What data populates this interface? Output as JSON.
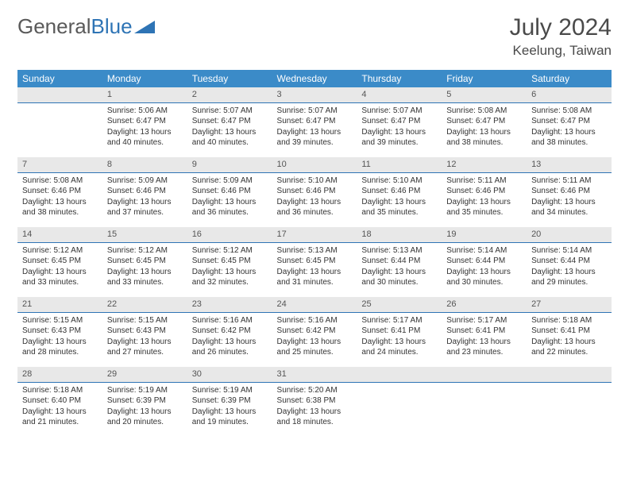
{
  "logo": {
    "text_gray": "General",
    "text_blue": "Blue"
  },
  "header": {
    "title": "July 2024",
    "location": "Keelung, Taiwan"
  },
  "colors": {
    "header_bg": "#3b8bc8",
    "header_text": "#ffffff",
    "daynum_bg": "#e8e8e8",
    "daynum_border": "#2e74b5",
    "body_text": "#333333"
  },
  "weekdays": [
    "Sunday",
    "Monday",
    "Tuesday",
    "Wednesday",
    "Thursday",
    "Friday",
    "Saturday"
  ],
  "weeks": [
    [
      {
        "n": "",
        "sr": "",
        "ss": "",
        "dl": ""
      },
      {
        "n": "1",
        "sr": "Sunrise: 5:06 AM",
        "ss": "Sunset: 6:47 PM",
        "dl": "Daylight: 13 hours and 40 minutes."
      },
      {
        "n": "2",
        "sr": "Sunrise: 5:07 AM",
        "ss": "Sunset: 6:47 PM",
        "dl": "Daylight: 13 hours and 40 minutes."
      },
      {
        "n": "3",
        "sr": "Sunrise: 5:07 AM",
        "ss": "Sunset: 6:47 PM",
        "dl": "Daylight: 13 hours and 39 minutes."
      },
      {
        "n": "4",
        "sr": "Sunrise: 5:07 AM",
        "ss": "Sunset: 6:47 PM",
        "dl": "Daylight: 13 hours and 39 minutes."
      },
      {
        "n": "5",
        "sr": "Sunrise: 5:08 AM",
        "ss": "Sunset: 6:47 PM",
        "dl": "Daylight: 13 hours and 38 minutes."
      },
      {
        "n": "6",
        "sr": "Sunrise: 5:08 AM",
        "ss": "Sunset: 6:47 PM",
        "dl": "Daylight: 13 hours and 38 minutes."
      }
    ],
    [
      {
        "n": "7",
        "sr": "Sunrise: 5:08 AM",
        "ss": "Sunset: 6:46 PM",
        "dl": "Daylight: 13 hours and 38 minutes."
      },
      {
        "n": "8",
        "sr": "Sunrise: 5:09 AM",
        "ss": "Sunset: 6:46 PM",
        "dl": "Daylight: 13 hours and 37 minutes."
      },
      {
        "n": "9",
        "sr": "Sunrise: 5:09 AM",
        "ss": "Sunset: 6:46 PM",
        "dl": "Daylight: 13 hours and 36 minutes."
      },
      {
        "n": "10",
        "sr": "Sunrise: 5:10 AM",
        "ss": "Sunset: 6:46 PM",
        "dl": "Daylight: 13 hours and 36 minutes."
      },
      {
        "n": "11",
        "sr": "Sunrise: 5:10 AM",
        "ss": "Sunset: 6:46 PM",
        "dl": "Daylight: 13 hours and 35 minutes."
      },
      {
        "n": "12",
        "sr": "Sunrise: 5:11 AM",
        "ss": "Sunset: 6:46 PM",
        "dl": "Daylight: 13 hours and 35 minutes."
      },
      {
        "n": "13",
        "sr": "Sunrise: 5:11 AM",
        "ss": "Sunset: 6:46 PM",
        "dl": "Daylight: 13 hours and 34 minutes."
      }
    ],
    [
      {
        "n": "14",
        "sr": "Sunrise: 5:12 AM",
        "ss": "Sunset: 6:45 PM",
        "dl": "Daylight: 13 hours and 33 minutes."
      },
      {
        "n": "15",
        "sr": "Sunrise: 5:12 AM",
        "ss": "Sunset: 6:45 PM",
        "dl": "Daylight: 13 hours and 33 minutes."
      },
      {
        "n": "16",
        "sr": "Sunrise: 5:12 AM",
        "ss": "Sunset: 6:45 PM",
        "dl": "Daylight: 13 hours and 32 minutes."
      },
      {
        "n": "17",
        "sr": "Sunrise: 5:13 AM",
        "ss": "Sunset: 6:45 PM",
        "dl": "Daylight: 13 hours and 31 minutes."
      },
      {
        "n": "18",
        "sr": "Sunrise: 5:13 AM",
        "ss": "Sunset: 6:44 PM",
        "dl": "Daylight: 13 hours and 30 minutes."
      },
      {
        "n": "19",
        "sr": "Sunrise: 5:14 AM",
        "ss": "Sunset: 6:44 PM",
        "dl": "Daylight: 13 hours and 30 minutes."
      },
      {
        "n": "20",
        "sr": "Sunrise: 5:14 AM",
        "ss": "Sunset: 6:44 PM",
        "dl": "Daylight: 13 hours and 29 minutes."
      }
    ],
    [
      {
        "n": "21",
        "sr": "Sunrise: 5:15 AM",
        "ss": "Sunset: 6:43 PM",
        "dl": "Daylight: 13 hours and 28 minutes."
      },
      {
        "n": "22",
        "sr": "Sunrise: 5:15 AM",
        "ss": "Sunset: 6:43 PM",
        "dl": "Daylight: 13 hours and 27 minutes."
      },
      {
        "n": "23",
        "sr": "Sunrise: 5:16 AM",
        "ss": "Sunset: 6:42 PM",
        "dl": "Daylight: 13 hours and 26 minutes."
      },
      {
        "n": "24",
        "sr": "Sunrise: 5:16 AM",
        "ss": "Sunset: 6:42 PM",
        "dl": "Daylight: 13 hours and 25 minutes."
      },
      {
        "n": "25",
        "sr": "Sunrise: 5:17 AM",
        "ss": "Sunset: 6:41 PM",
        "dl": "Daylight: 13 hours and 24 minutes."
      },
      {
        "n": "26",
        "sr": "Sunrise: 5:17 AM",
        "ss": "Sunset: 6:41 PM",
        "dl": "Daylight: 13 hours and 23 minutes."
      },
      {
        "n": "27",
        "sr": "Sunrise: 5:18 AM",
        "ss": "Sunset: 6:41 PM",
        "dl": "Daylight: 13 hours and 22 minutes."
      }
    ],
    [
      {
        "n": "28",
        "sr": "Sunrise: 5:18 AM",
        "ss": "Sunset: 6:40 PM",
        "dl": "Daylight: 13 hours and 21 minutes."
      },
      {
        "n": "29",
        "sr": "Sunrise: 5:19 AM",
        "ss": "Sunset: 6:39 PM",
        "dl": "Daylight: 13 hours and 20 minutes."
      },
      {
        "n": "30",
        "sr": "Sunrise: 5:19 AM",
        "ss": "Sunset: 6:39 PM",
        "dl": "Daylight: 13 hours and 19 minutes."
      },
      {
        "n": "31",
        "sr": "Sunrise: 5:20 AM",
        "ss": "Sunset: 6:38 PM",
        "dl": "Daylight: 13 hours and 18 minutes."
      },
      {
        "n": "",
        "sr": "",
        "ss": "",
        "dl": ""
      },
      {
        "n": "",
        "sr": "",
        "ss": "",
        "dl": ""
      },
      {
        "n": "",
        "sr": "",
        "ss": "",
        "dl": ""
      }
    ]
  ]
}
